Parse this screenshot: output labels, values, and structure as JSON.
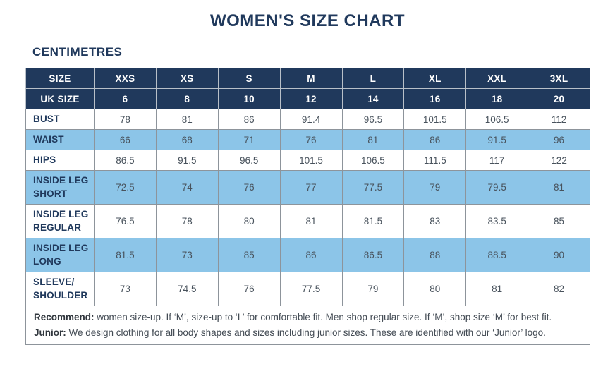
{
  "title": "WOMEN'S SIZE CHART",
  "subtitle": "CENTIMETRES",
  "colors": {
    "header_navy": "#20395c",
    "row_highlight_blue": "#8cc5e8",
    "border_gray": "#8d949b",
    "value_text": "#48525c",
    "background": "#ffffff"
  },
  "chart_data": {
    "type": "table",
    "title": "WOMEN'S SIZE CHART",
    "units": "CENTIMETRES",
    "header_rows": [
      [
        "SIZE",
        "XXS",
        "XS",
        "S",
        "M",
        "L",
        "XL",
        "XXL",
        "3XL"
      ],
      [
        "UK SIZE",
        "6",
        "8",
        "10",
        "12",
        "14",
        "16",
        "18",
        "20"
      ]
    ],
    "rows": [
      {
        "label": "BUST",
        "highlight": false,
        "values": [
          "78",
          "81",
          "86",
          "91.4",
          "96.5",
          "101.5",
          "106.5",
          "112"
        ]
      },
      {
        "label": "WAIST",
        "highlight": true,
        "values": [
          "66",
          "68",
          "71",
          "76",
          "81",
          "86",
          "91.5",
          "96"
        ]
      },
      {
        "label": "HIPS",
        "highlight": false,
        "values": [
          "86.5",
          "91.5",
          "96.5",
          "101.5",
          "106.5",
          "111.5",
          "117",
          "122"
        ]
      },
      {
        "label": "INSIDE LEG\nSHORT",
        "highlight": true,
        "values": [
          "72.5",
          "74",
          "76",
          "77",
          "77.5",
          "79",
          "79.5",
          "81"
        ]
      },
      {
        "label": "INSIDE LEG\nREGULAR",
        "highlight": false,
        "values": [
          "76.5",
          "78",
          "80",
          "81",
          "81.5",
          "83",
          "83.5",
          "85"
        ]
      },
      {
        "label": "INSIDE LEG\nLONG",
        "highlight": true,
        "values": [
          "81.5",
          "73",
          "85",
          "86",
          "86.5",
          "88",
          "88.5",
          "90"
        ]
      },
      {
        "label": "SLEEVE/\nSHOULDER",
        "highlight": false,
        "values": [
          "73",
          "74.5",
          "76",
          "77.5",
          "79",
          "80",
          "81",
          "82"
        ]
      }
    ],
    "notes": [
      {
        "label": "Recommend:",
        "text": " women size-up. If ‘M’, size-up to ‘L’ for comfortable fit. Men shop regular size. If ‘M’, shop size ‘M’ for best fit."
      },
      {
        "label": "Junior:",
        "text": " We design clothing for all body shapes and sizes including junior sizes. These are identified with our ‘Junior’ logo."
      }
    ]
  }
}
